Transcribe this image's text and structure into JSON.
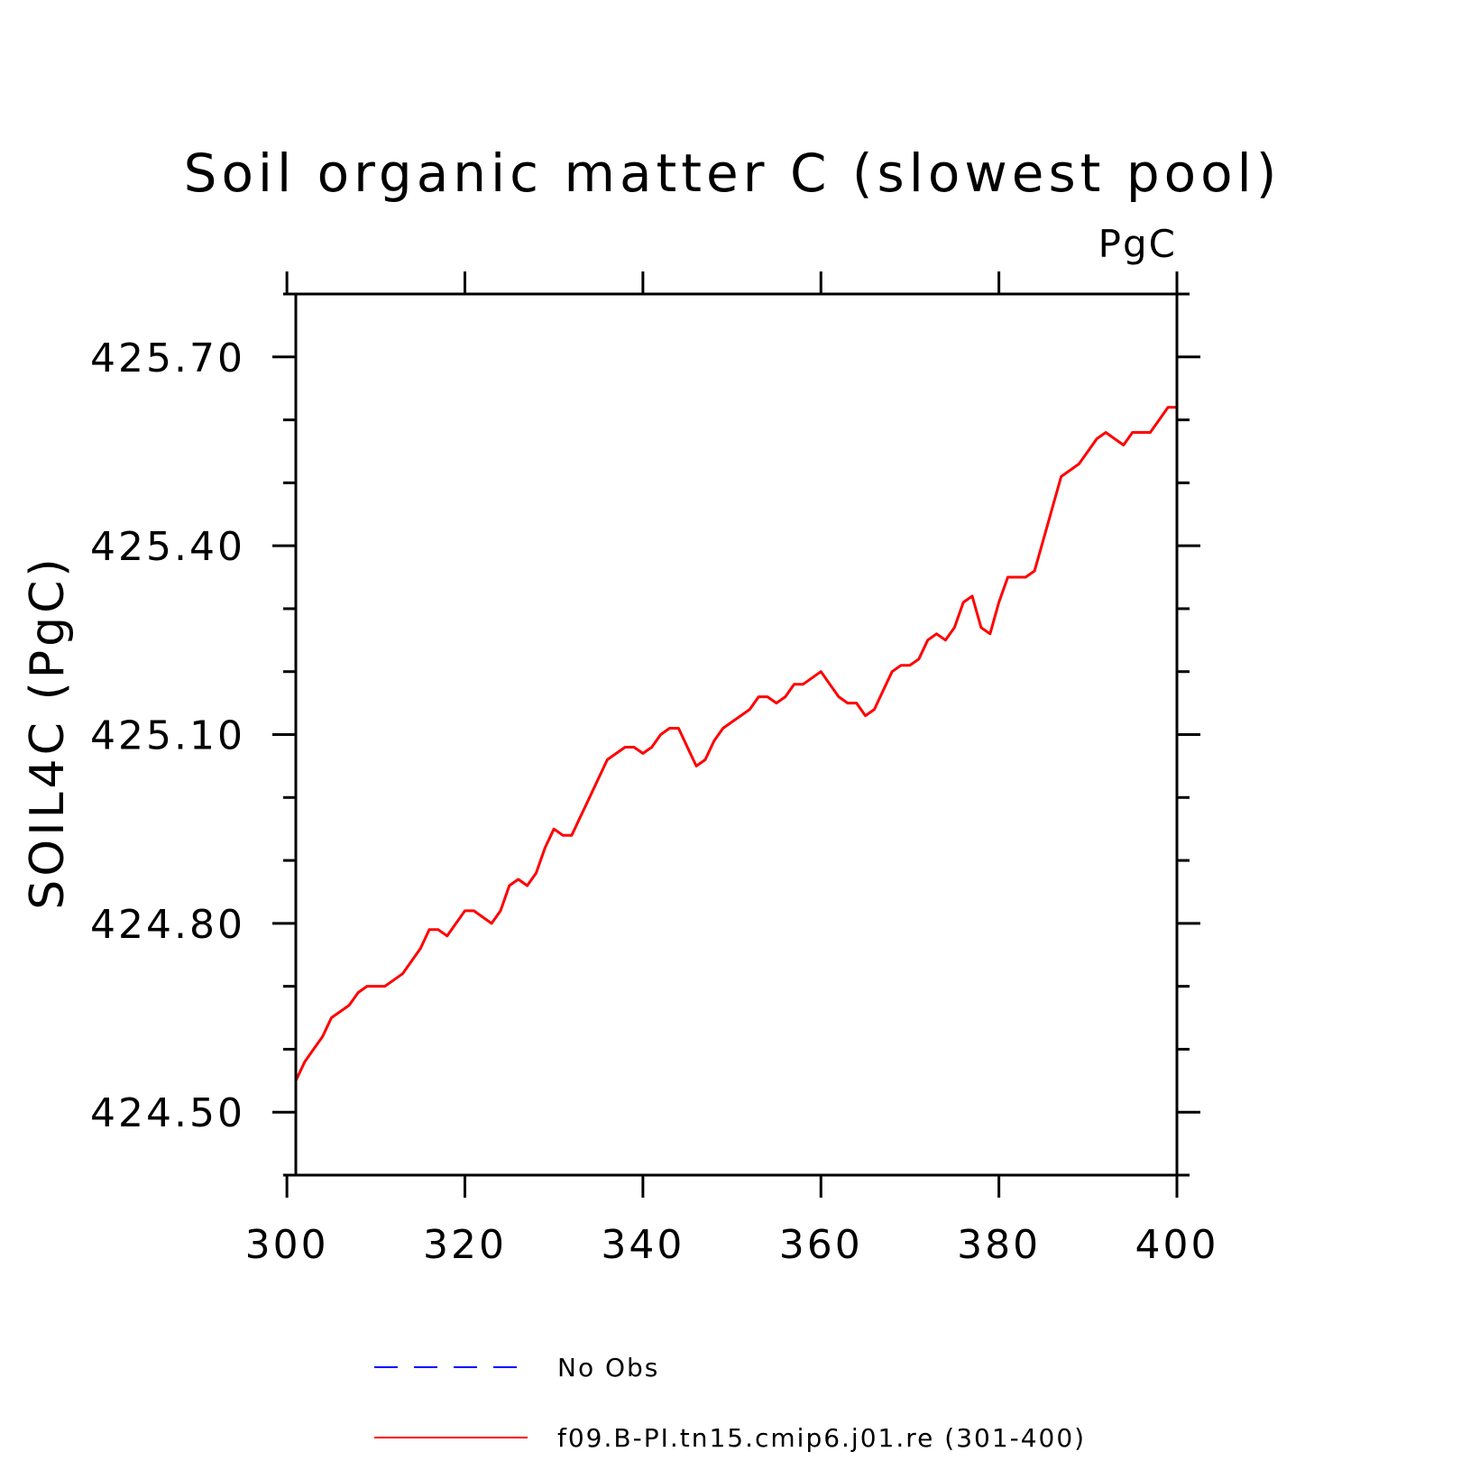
{
  "chart_data": {
    "type": "line",
    "title": "Soil organic matter C (slowest pool)",
    "units_label": "PgC",
    "xlabel": "",
    "ylabel": "SOIL4C  (PgC)",
    "xlim": [
      301,
      400
    ],
    "ylim": [
      424.4,
      425.8
    ],
    "x_ticks": [
      300,
      320,
      340,
      360,
      380,
      400
    ],
    "x_tick_labels": [
      "300",
      "320",
      "340",
      "360",
      "380",
      "400"
    ],
    "y_ticks": [
      424.5,
      424.8,
      425.1,
      425.4,
      425.7
    ],
    "y_tick_labels": [
      "424.50",
      "424.80",
      "425.10",
      "425.40",
      "425.70"
    ],
    "y_minor_step": 0.1,
    "grid": false,
    "legend_position": "bottom-center",
    "series": [
      {
        "name": "No Obs",
        "color": "#0000ff",
        "style": "dashed",
        "x": [],
        "values": []
      },
      {
        "name": "f09.B-PI.tn15.cmip6.j01.re (301-400)",
        "color": "#ff0000",
        "style": "solid",
        "x": [
          301,
          302,
          303,
          304,
          305,
          306,
          307,
          308,
          309,
          310,
          311,
          312,
          313,
          314,
          315,
          316,
          317,
          318,
          319,
          320,
          321,
          322,
          323,
          324,
          325,
          326,
          327,
          328,
          329,
          330,
          331,
          332,
          333,
          334,
          335,
          336,
          337,
          338,
          339,
          340,
          341,
          342,
          343,
          344,
          345,
          346,
          347,
          348,
          349,
          350,
          351,
          352,
          353,
          354,
          355,
          356,
          357,
          358,
          359,
          360,
          361,
          362,
          363,
          364,
          365,
          366,
          367,
          368,
          369,
          370,
          371,
          372,
          373,
          374,
          375,
          376,
          377,
          378,
          379,
          380,
          381,
          382,
          383,
          384,
          385,
          386,
          387,
          388,
          389,
          390,
          391,
          392,
          393,
          394,
          395,
          396,
          397,
          398,
          399,
          400
        ],
        "values": [
          424.55,
          424.58,
          424.6,
          424.62,
          424.65,
          424.66,
          424.67,
          424.69,
          424.7,
          424.7,
          424.7,
          424.71,
          424.72,
          424.74,
          424.76,
          424.79,
          424.79,
          424.78,
          424.8,
          424.82,
          424.82,
          424.81,
          424.8,
          424.82,
          424.86,
          424.87,
          424.86,
          424.88,
          424.92,
          424.95,
          424.94,
          424.94,
          424.97,
          425.0,
          425.03,
          425.06,
          425.07,
          425.08,
          425.08,
          425.07,
          425.08,
          425.1,
          425.11,
          425.11,
          425.08,
          425.05,
          425.06,
          425.09,
          425.11,
          425.12,
          425.13,
          425.14,
          425.16,
          425.16,
          425.15,
          425.16,
          425.18,
          425.18,
          425.19,
          425.2,
          425.18,
          425.16,
          425.15,
          425.15,
          425.13,
          425.14,
          425.17,
          425.2,
          425.21,
          425.21,
          425.22,
          425.25,
          425.26,
          425.25,
          425.27,
          425.31,
          425.32,
          425.27,
          425.26,
          425.31,
          425.35,
          425.35,
          425.35,
          425.36,
          425.41,
          425.46,
          425.51,
          425.52,
          425.53,
          425.55,
          425.57,
          425.58,
          425.57,
          425.56,
          425.58,
          425.58,
          425.58,
          425.6,
          425.62,
          425.62
        ]
      }
    ]
  }
}
